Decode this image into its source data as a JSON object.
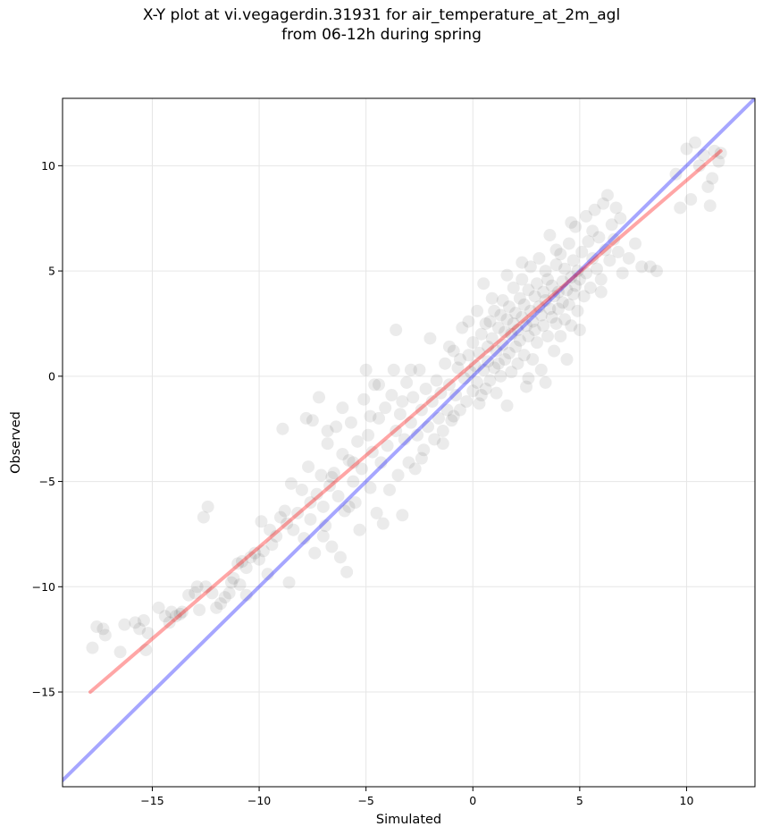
{
  "chart_data": {
    "type": "scatter",
    "title_line1": "X-Y plot at vi.vegagerdin.31931 for air_temperature_at_2m_agl",
    "title_line2": "from 06-12h during spring",
    "xlabel": "Simulated",
    "ylabel": "Observed",
    "xlim": [
      -19.2,
      13.2
    ],
    "ylim": [
      -19.5,
      13.2
    ],
    "xticks": [
      -15,
      -10,
      -5,
      0,
      5,
      10
    ],
    "yticks": [
      -15,
      -10,
      -5,
      0,
      5,
      10
    ],
    "xtick_labels": [
      "−15",
      "−10",
      "−5",
      "0",
      "5",
      "10"
    ],
    "ytick_labels": [
      "−15",
      "−10",
      "−5",
      "0",
      "5",
      "10"
    ],
    "grid": true,
    "identity_line": {
      "from": [
        -19.2,
        -19.2
      ],
      "to": [
        13.2,
        13.2
      ],
      "color": "#0000ff"
    },
    "regression_line": {
      "from": [
        -17.9,
        -15.0
      ],
      "to": [
        11.6,
        10.7
      ],
      "color": "#ff0000"
    },
    "marker_color": "#000000",
    "series": [
      {
        "points": [
          [
            -17.8,
            -12.9
          ],
          [
            -17.6,
            -11.9
          ],
          [
            -17.3,
            -12.0
          ],
          [
            -17.2,
            -12.3
          ],
          [
            -16.5,
            -13.1
          ],
          [
            -16.3,
            -11.8
          ],
          [
            -15.8,
            -11.7
          ],
          [
            -15.6,
            -12.0
          ],
          [
            -15.4,
            -11.6
          ],
          [
            -15.3,
            -13.0
          ],
          [
            -15.2,
            -12.2
          ],
          [
            -14.7,
            -11.0
          ],
          [
            -14.4,
            -11.4
          ],
          [
            -14.2,
            -11.7
          ],
          [
            -13.9,
            -11.4
          ],
          [
            -13.6,
            -11.2
          ],
          [
            -13.3,
            -10.4
          ],
          [
            -13.0,
            -10.3
          ],
          [
            -12.8,
            -11.1
          ],
          [
            -12.6,
            -6.7
          ],
          [
            -12.5,
            -10.0
          ],
          [
            -12.4,
            -6.2
          ],
          [
            -12.2,
            -10.3
          ],
          [
            -12.0,
            -11.0
          ],
          [
            -11.8,
            -10.8
          ],
          [
            -11.6,
            -10.5
          ],
          [
            -11.4,
            -10.3
          ],
          [
            -11.2,
            -9.6
          ],
          [
            -11.0,
            -8.9
          ],
          [
            -10.8,
            -8.8
          ],
          [
            -10.6,
            -9.1
          ],
          [
            -10.4,
            -8.6
          ],
          [
            -10.2,
            -8.4
          ],
          [
            -10.0,
            -8.7
          ],
          [
            -9.8,
            -8.3
          ],
          [
            -9.6,
            -9.4
          ],
          [
            -9.4,
            -8.0
          ],
          [
            -9.2,
            -7.6
          ],
          [
            -9.0,
            -6.7
          ],
          [
            -8.9,
            -2.5
          ],
          [
            -8.7,
            -7.0
          ],
          [
            -8.6,
            -9.8
          ],
          [
            -8.4,
            -7.3
          ],
          [
            -8.2,
            -6.5
          ],
          [
            -8.0,
            -5.4
          ],
          [
            -7.9,
            -7.7
          ],
          [
            -7.7,
            -4.3
          ],
          [
            -7.6,
            -6.8
          ],
          [
            -7.5,
            -2.1
          ],
          [
            -7.4,
            -8.4
          ],
          [
            -7.3,
            -5.6
          ],
          [
            -7.2,
            -1.0
          ],
          [
            -7.1,
            -4.7
          ],
          [
            -7.0,
            -6.2
          ],
          [
            -6.9,
            -7.1
          ],
          [
            -6.8,
            -3.2
          ],
          [
            -6.7,
            -5.2
          ],
          [
            -6.6,
            -8.1
          ],
          [
            -6.5,
            -4.6
          ],
          [
            -6.4,
            -2.4
          ],
          [
            -6.3,
            -5.7
          ],
          [
            -6.2,
            -8.6
          ],
          [
            -6.1,
            -3.7
          ],
          [
            -6.0,
            -6.4
          ],
          [
            -5.9,
            -9.3
          ],
          [
            -5.8,
            -4.0
          ],
          [
            -5.7,
            -2.2
          ],
          [
            -5.6,
            -5.0
          ],
          [
            -5.5,
            -6.0
          ],
          [
            -5.4,
            -3.1
          ],
          [
            -5.3,
            -7.3
          ],
          [
            -5.2,
            -4.4
          ],
          [
            -5.1,
            -1.1
          ],
          [
            -5.0,
            0.3
          ],
          [
            -4.9,
            -2.8
          ],
          [
            -4.8,
            -5.3
          ],
          [
            -4.7,
            -3.6
          ],
          [
            -4.6,
            -0.4
          ],
          [
            -4.5,
            -6.5
          ],
          [
            -4.4,
            -2.0
          ],
          [
            -4.3,
            -4.1
          ],
          [
            -4.2,
            -7.0
          ],
          [
            -4.1,
            -1.5
          ],
          [
            -4.0,
            -3.3
          ],
          [
            -3.9,
            -5.4
          ],
          [
            -3.8,
            -0.9
          ],
          [
            -3.7,
            0.3
          ],
          [
            -3.6,
            -2.6
          ],
          [
            -3.5,
            -4.7
          ],
          [
            -3.4,
            -1.8
          ],
          [
            -3.3,
            -6.6
          ],
          [
            -3.2,
            -3.0
          ],
          [
            -3.1,
            -0.3
          ],
          [
            -3.0,
            -4.1
          ],
          [
            -2.9,
            -2.2
          ],
          [
            -2.8,
            -1.0
          ],
          [
            -2.7,
            -4.4
          ],
          [
            -2.6,
            -2.8
          ],
          [
            -2.5,
            0.3
          ],
          [
            -2.4,
            -1.6
          ],
          [
            -2.3,
            -3.5
          ],
          [
            -2.2,
            -0.6
          ],
          [
            -2.1,
            -2.4
          ],
          [
            -2.0,
            1.8
          ],
          [
            -1.9,
            -1.2
          ],
          [
            -1.8,
            -3.0
          ],
          [
            -1.7,
            -0.2
          ],
          [
            -1.6,
            -2.0
          ],
          [
            -1.5,
            -0.8
          ],
          [
            -1.4,
            -2.6
          ],
          [
            -1.3,
            0.6
          ],
          [
            -1.2,
            -1.6
          ],
          [
            -1.1,
            -0.4
          ],
          [
            -1.0,
            -2.1
          ],
          [
            -0.9,
            1.2
          ],
          [
            -0.8,
            -0.9
          ],
          [
            -0.7,
            0.4
          ],
          [
            -0.6,
            -1.6
          ],
          [
            -0.5,
            2.3
          ],
          [
            -0.4,
            -0.1
          ],
          [
            -0.3,
            -1.2
          ],
          [
            -0.2,
            1.0
          ],
          [
            -0.1,
            0.2
          ],
          [
            0.0,
            -0.7
          ],
          [
            0.0,
            1.6
          ],
          [
            0.1,
            0.5
          ],
          [
            0.2,
            -0.3
          ],
          [
            0.3,
            1.1
          ],
          [
            0.3,
            -1.3
          ],
          [
            0.4,
            2.0
          ],
          [
            0.5,
            0.3
          ],
          [
            0.5,
            4.4
          ],
          [
            0.6,
            -0.6
          ],
          [
            0.7,
            1.4
          ],
          [
            0.7,
            0.7
          ],
          [
            0.8,
            2.6
          ],
          [
            0.8,
            -0.2
          ],
          [
            0.9,
            1.8
          ],
          [
            1.0,
            0.4
          ],
          [
            1.0,
            3.1
          ],
          [
            1.1,
            -0.8
          ],
          [
            1.1,
            1.2
          ],
          [
            1.2,
            2.3
          ],
          [
            1.3,
            0.0
          ],
          [
            1.3,
            2.9
          ],
          [
            1.4,
            1.5
          ],
          [
            1.4,
            3.6
          ],
          [
            1.5,
            0.8
          ],
          [
            1.5,
            2.1
          ],
          [
            1.6,
            -1.4
          ],
          [
            1.6,
            2.7
          ],
          [
            1.7,
            1.1
          ],
          [
            1.7,
            3.3
          ],
          [
            1.8,
            2.0
          ],
          [
            1.8,
            0.2
          ],
          [
            1.9,
            4.2
          ],
          [
            1.9,
            2.5
          ],
          [
            2.0,
            1.4
          ],
          [
            2.0,
            3.0
          ],
          [
            2.1,
            0.6
          ],
          [
            2.1,
            2.2
          ],
          [
            2.2,
            3.7
          ],
          [
            2.2,
            1.7
          ],
          [
            2.3,
            4.6
          ],
          [
            2.3,
            2.8
          ],
          [
            2.4,
            1.0
          ],
          [
            2.4,
            3.4
          ],
          [
            2.5,
            -0.5
          ],
          [
            2.5,
            2.4
          ],
          [
            2.6,
            4.1
          ],
          [
            2.6,
            1.9
          ],
          [
            2.7,
            3.1
          ],
          [
            2.7,
            5.2
          ],
          [
            2.8,
            2.6
          ],
          [
            2.8,
            0.8
          ],
          [
            2.9,
            3.8
          ],
          [
            2.9,
            2.2
          ],
          [
            3.0,
            4.4
          ],
          [
            3.0,
            1.6
          ],
          [
            3.1,
            3.3
          ],
          [
            3.1,
            5.6
          ],
          [
            3.2,
            2.9
          ],
          [
            3.2,
            0.3
          ],
          [
            3.3,
            4.0
          ],
          [
            3.3,
            2.4
          ],
          [
            3.4,
            3.6
          ],
          [
            3.4,
            5.0
          ],
          [
            3.5,
            1.9
          ],
          [
            3.5,
            4.6
          ],
          [
            3.6,
            3.2
          ],
          [
            3.6,
            6.7
          ],
          [
            3.7,
            2.8
          ],
          [
            3.7,
            4.3
          ],
          [
            3.8,
            1.2
          ],
          [
            3.8,
            3.8
          ],
          [
            3.9,
            5.3
          ],
          [
            3.9,
            2.5
          ],
          [
            4.0,
            4.0
          ],
          [
            4.0,
            3.2
          ],
          [
            4.1,
            5.8
          ],
          [
            4.1,
            1.9
          ],
          [
            4.2,
            4.5
          ],
          [
            4.2,
            3.5
          ],
          [
            4.3,
            2.7
          ],
          [
            4.3,
            5.1
          ],
          [
            4.4,
            4.1
          ],
          [
            4.4,
            0.8
          ],
          [
            4.5,
            3.4
          ],
          [
            4.5,
            6.3
          ],
          [
            4.6,
            4.7
          ],
          [
            4.6,
            2.4
          ],
          [
            4.7,
            3.9
          ],
          [
            4.7,
            5.5
          ],
          [
            4.8,
            4.3
          ],
          [
            4.8,
            7.1
          ],
          [
            4.9,
            3.1
          ],
          [
            4.9,
            5.0
          ],
          [
            5.0,
            4.6
          ],
          [
            5.0,
            2.2
          ],
          [
            5.1,
            5.9
          ],
          [
            5.2,
            3.8
          ],
          [
            5.3,
            7.6
          ],
          [
            5.3,
            4.9
          ],
          [
            5.4,
            6.4
          ],
          [
            5.5,
            4.2
          ],
          [
            5.6,
            5.6
          ],
          [
            5.7,
            7.9
          ],
          [
            5.8,
            5.1
          ],
          [
            5.9,
            6.6
          ],
          [
            6.0,
            4.6
          ],
          [
            6.1,
            8.2
          ],
          [
            6.2,
            6.0
          ],
          [
            6.3,
            8.6
          ],
          [
            6.4,
            5.5
          ],
          [
            6.5,
            7.2
          ],
          [
            6.6,
            6.5
          ],
          [
            6.7,
            8.0
          ],
          [
            6.8,
            5.9
          ],
          [
            7.0,
            4.9
          ],
          [
            7.3,
            5.6
          ],
          [
            7.6,
            6.3
          ],
          [
            7.9,
            5.2
          ],
          [
            8.3,
            5.2
          ],
          [
            8.6,
            5.0
          ],
          [
            9.5,
            9.6
          ],
          [
            9.7,
            8.0
          ],
          [
            10.0,
            10.8
          ],
          [
            10.2,
            8.4
          ],
          [
            10.4,
            11.1
          ],
          [
            10.6,
            10.0
          ],
          [
            10.8,
            10.5
          ],
          [
            11.0,
            9.0
          ],
          [
            11.1,
            8.1
          ],
          [
            11.2,
            9.4
          ],
          [
            11.3,
            10.7
          ],
          [
            11.5,
            10.2
          ],
          [
            11.6,
            10.6
          ],
          [
            -7.8,
            -2.0
          ],
          [
            -6.8,
            -2.6
          ],
          [
            -6.1,
            -1.5
          ],
          [
            -4.4,
            -0.4
          ],
          [
            -3.6,
            2.2
          ],
          [
            -2.9,
            0.3
          ],
          [
            -3.3,
            -1.2
          ],
          [
            -4.8,
            -1.9
          ],
          [
            -5.6,
            -4.1
          ],
          [
            -6.6,
            -4.8
          ],
          [
            -8.8,
            -6.4
          ],
          [
            -9.5,
            -7.3
          ],
          [
            -10.9,
            -9.9
          ],
          [
            -10.6,
            -10.4
          ],
          [
            -13.7,
            -11.3
          ],
          [
            0.6,
            2.5
          ],
          [
            0.9,
            3.7
          ],
          [
            1.2,
            0.6
          ],
          [
            0.4,
            -0.9
          ],
          [
            2.6,
            -0.1
          ],
          [
            3.4,
            -0.3
          ],
          [
            -0.6,
            0.8
          ],
          [
            -1.1,
            1.4
          ],
          [
            0.2,
            3.1
          ],
          [
            -0.2,
            2.6
          ],
          [
            2.3,
            5.4
          ],
          [
            1.6,
            4.8
          ],
          [
            3.9,
            6.0
          ],
          [
            4.6,
            7.3
          ],
          [
            5.6,
            6.9
          ],
          [
            6.0,
            4.0
          ],
          [
            6.9,
            7.5
          ],
          [
            -2.4,
            -3.9
          ],
          [
            -1.4,
            -3.2
          ],
          [
            -0.9,
            -1.9
          ],
          [
            -5.8,
            -6.2
          ],
          [
            -7.0,
            -7.6
          ],
          [
            -7.6,
            -6.0
          ],
          [
            -8.5,
            -5.1
          ],
          [
            -9.9,
            -6.9
          ],
          [
            -11.3,
            -9.8
          ],
          [
            -12.9,
            -10.0
          ],
          [
            -14.1,
            -11.2
          ]
        ]
      }
    ]
  }
}
